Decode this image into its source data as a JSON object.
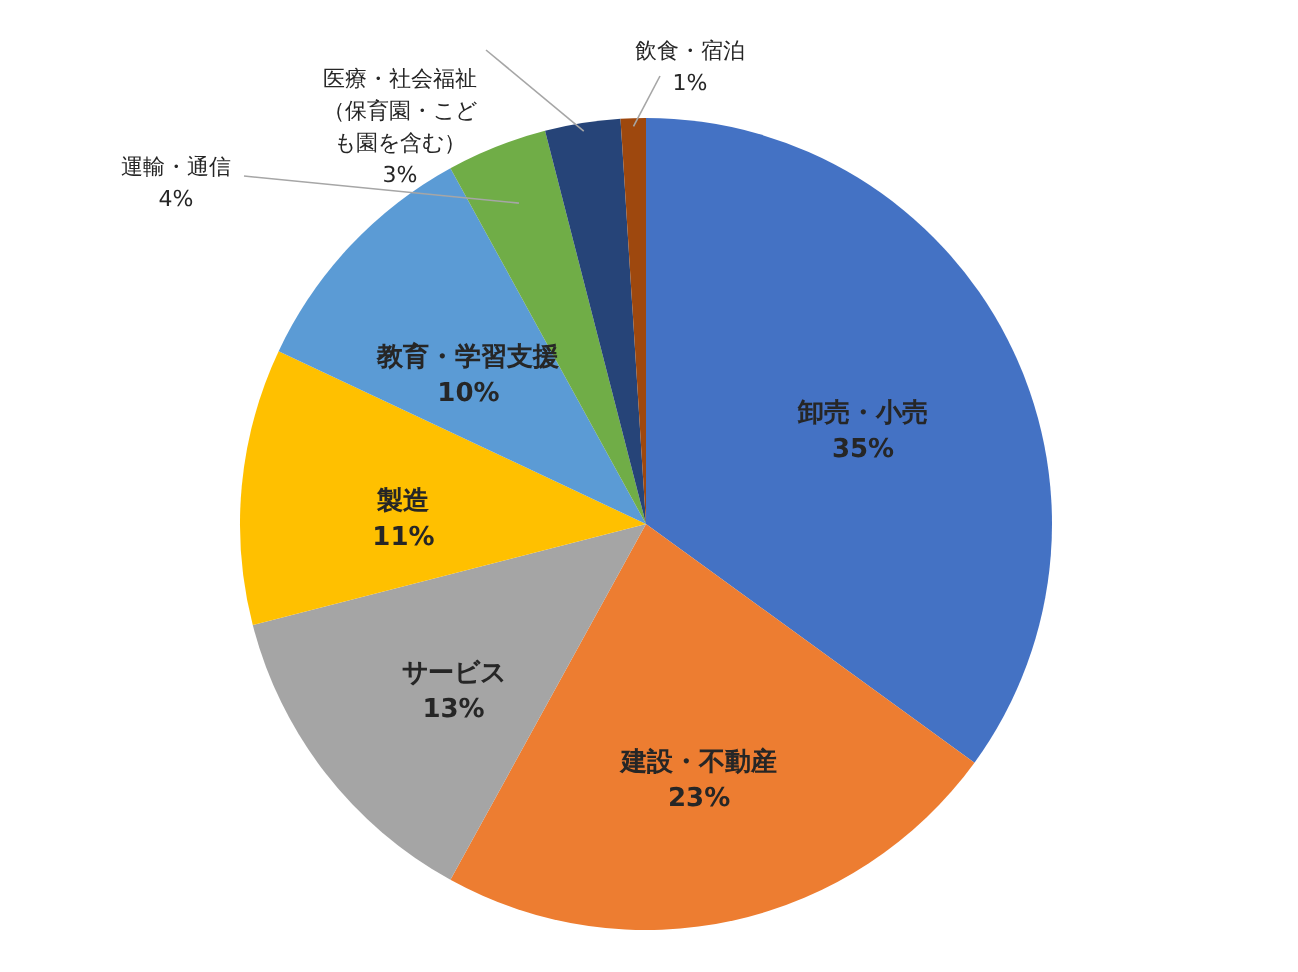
{
  "chart_data": {
    "type": "pie",
    "categories": [
      "卸売・小売",
      "建設・不動産",
      "サービス",
      "製造",
      "教育・学習支援",
      "運輸・通信",
      "医療・社会福祉（保育園・こども園を含む）",
      "飲食・宿泊"
    ],
    "values": [
      35,
      23,
      13,
      11,
      10,
      4,
      3,
      1
    ],
    "colors": [
      "#4472c4",
      "#ed7d31",
      "#a5a5a5",
      "#ffc000",
      "#5b9bd5",
      "#70ad47",
      "#264478",
      "#9e480e"
    ],
    "value_labels": [
      "35%",
      "23%",
      "13%",
      "11%",
      "10%",
      "4%",
      "3%",
      "1%"
    ]
  }
}
